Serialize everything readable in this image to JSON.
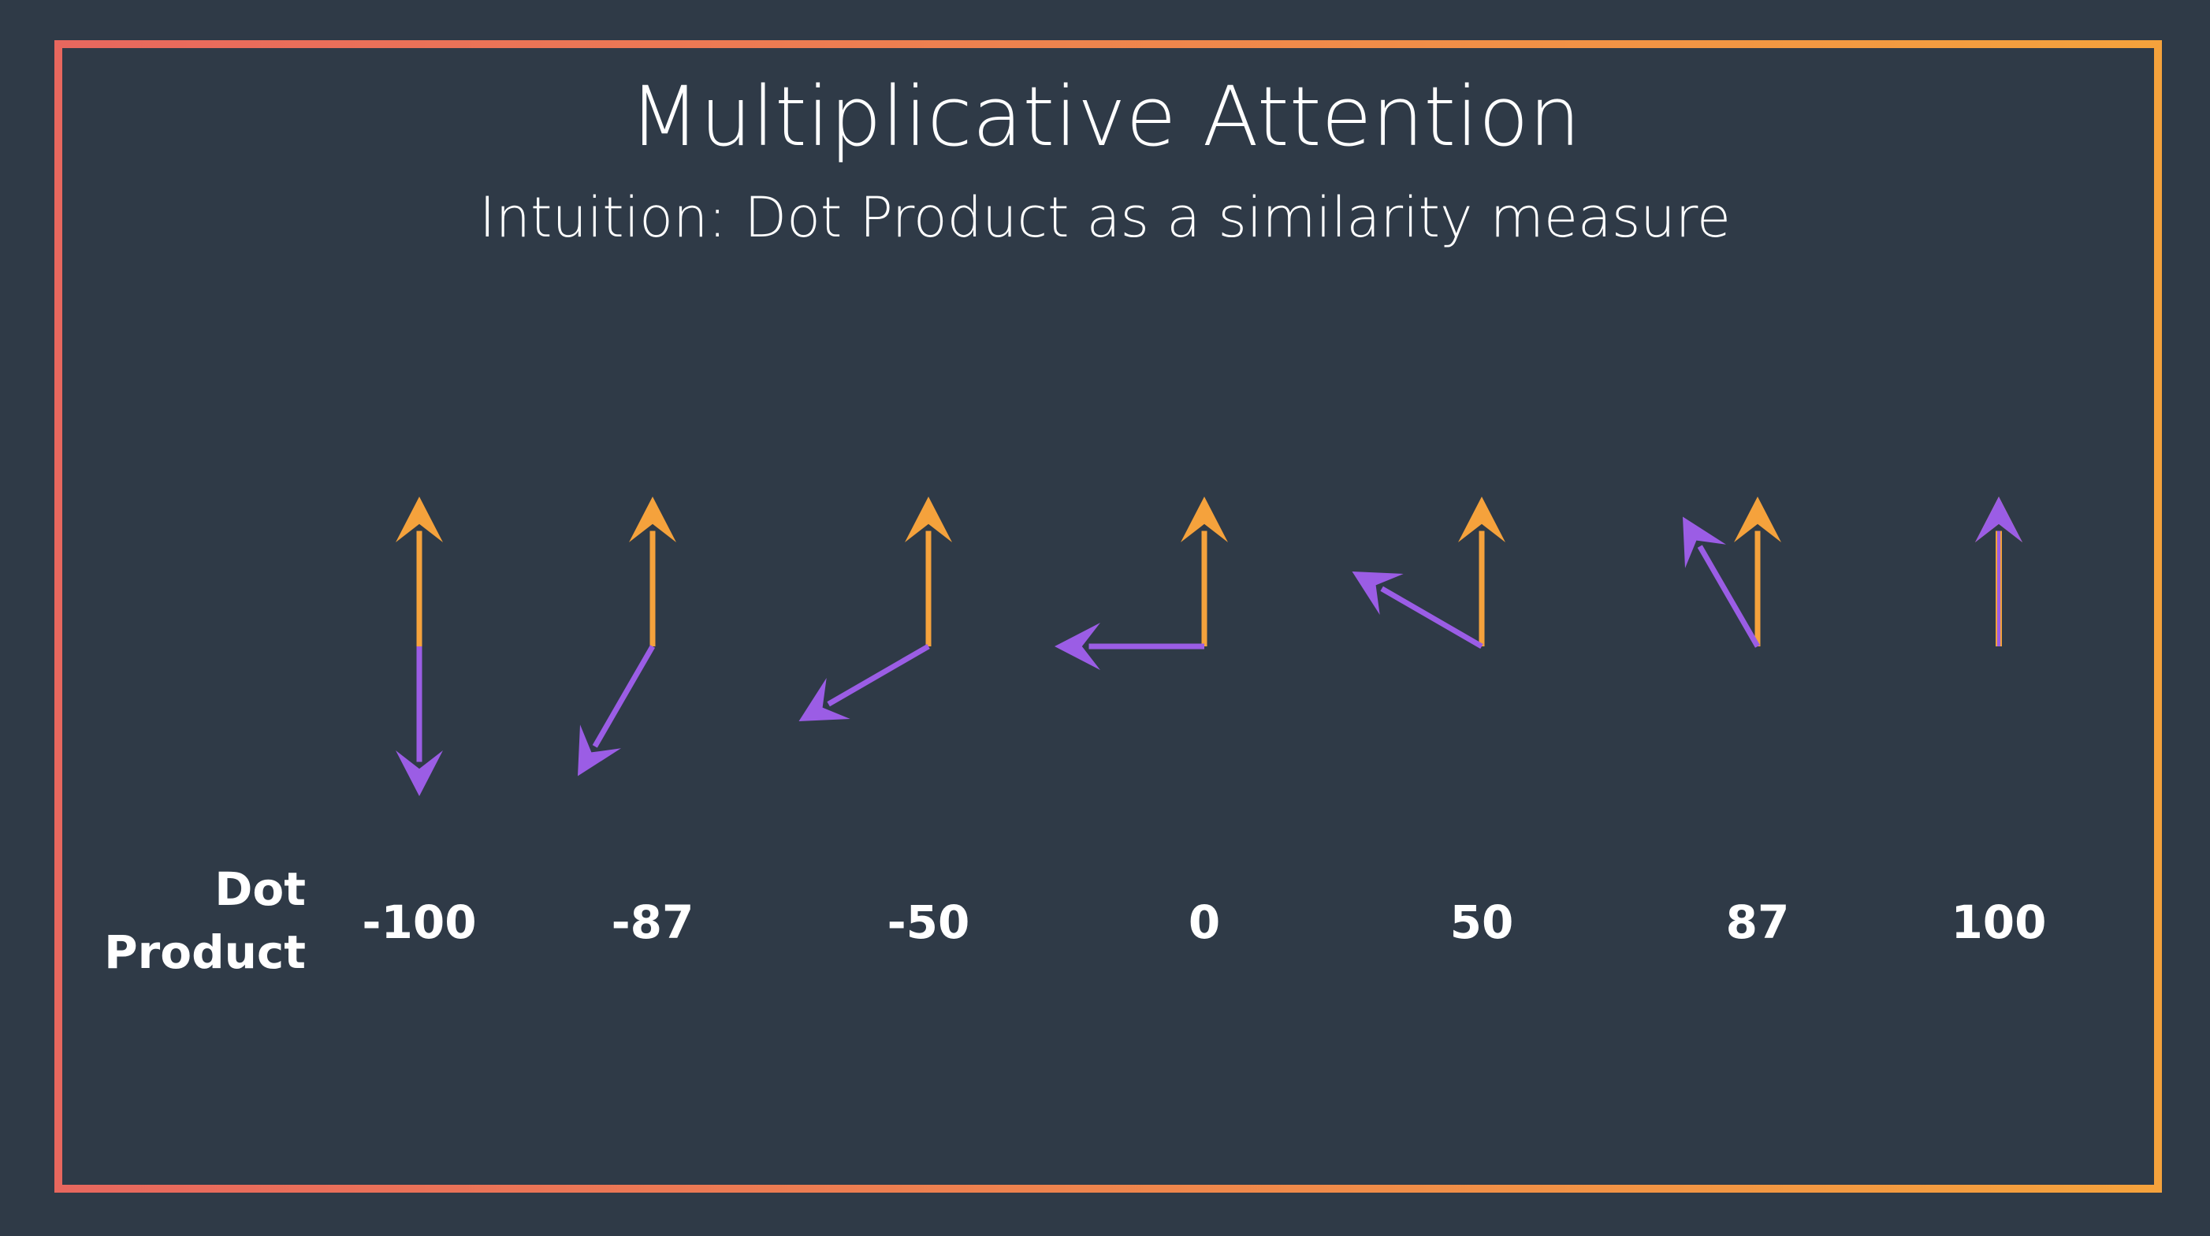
{
  "slide": {
    "title": "Multiplicative Attention",
    "subtitle": "Intuition: Dot Product as a similarity measure",
    "row_label_line1": "Dot",
    "row_label_line2": "Product"
  },
  "colors": {
    "background": "#2f3a47",
    "border_start": "#e8675e",
    "border_end": "#f5a23c",
    "reference_vector": "#f5a23c",
    "query_vector": "#9b5de5",
    "text": "#ffffff"
  },
  "pairs": [
    {
      "label": "-100",
      "angle_deg": 180
    },
    {
      "label": "-87",
      "angle_deg": 150
    },
    {
      "label": "-50",
      "angle_deg": 120
    },
    {
      "label": "0",
      "angle_deg": 90
    },
    {
      "label": "50",
      "angle_deg": 60
    },
    {
      "label": "87",
      "angle_deg": 30
    },
    {
      "label": "100",
      "angle_deg": 0
    }
  ]
}
